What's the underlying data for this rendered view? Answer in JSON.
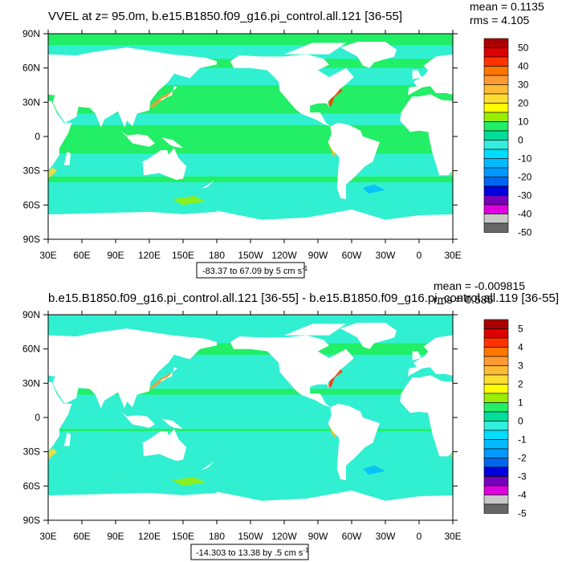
{
  "figure": {
    "background": "#ffffff",
    "ocean_color": "#22ee66",
    "ocean_alt_color": "#33eedd",
    "land_color": "#ffffff"
  },
  "chart_data": [
    {
      "type": "heatmap",
      "title": "VVEL at z=  95.0m, b.e15.B1850.f09_g16.pi_control.all.121 [36-55]",
      "stats": {
        "mean": "mean = 0.1135",
        "rms": "rms = 4.105"
      },
      "x_ticks": [
        "30E",
        "60E",
        "90E",
        "120E",
        "150E",
        "180",
        "150W",
        "120W",
        "90W",
        "60W",
        "30W",
        "0",
        "30E"
      ],
      "y_ticks": [
        "90N",
        "60N",
        "30N",
        "0",
        "30S",
        "60S",
        "90S"
      ],
      "xlim_lon_east": [
        30,
        390
      ],
      "ylim_lat": [
        -90,
        90
      ],
      "range_text": "-83.37 to 67.09 by 5 cm s",
      "range_unit_sup": "-1",
      "colorbar": {
        "labels": [
          "50",
          "40",
          "30",
          "20",
          "10",
          "0",
          "-10",
          "-20",
          "-30",
          "-40",
          "-50"
        ],
        "colors": [
          "#aa0000",
          "#dd0000",
          "#ff3300",
          "#ff7700",
          "#ff9933",
          "#ffbb33",
          "#ffdd33",
          "#ffff00",
          "#99ee00",
          "#22ee66",
          "#00dd99",
          "#33eedd",
          "#00ddff",
          "#00bbff",
          "#0099ff",
          "#0066ee",
          "#0000dd",
          "#7700bb",
          "#dd00dd",
          "#c8c8c8",
          "#666666"
        ]
      }
    },
    {
      "type": "heatmap",
      "title": "b.e15.B1850.f09_g16.pi_control.all.121 [36-55] - b.e15.B1850.f09_g16.pi_control.all.119 [36-55]",
      "stats": {
        "mean": "mean = -0.009815",
        "rms": "rms = 0.585"
      },
      "x_ticks": [
        "30E",
        "60E",
        "90E",
        "120E",
        "150E",
        "180",
        "150W",
        "120W",
        "90W",
        "60W",
        "30W",
        "0",
        "30E"
      ],
      "y_ticks": [
        "90N",
        "60N",
        "30N",
        "0",
        "30S",
        "60S",
        "90S"
      ],
      "xlim_lon_east": [
        30,
        390
      ],
      "ylim_lat": [
        -90,
        90
      ],
      "range_text": "-14.303 to 13.38 by .5 cm s",
      "range_unit_sup": "-1",
      "colorbar": {
        "labels": [
          "5",
          "4",
          "3",
          "2",
          "1",
          "0",
          "-1",
          "-2",
          "-3",
          "-4",
          "-5"
        ],
        "colors": [
          "#aa0000",
          "#dd0000",
          "#ff3300",
          "#ff7700",
          "#ff9933",
          "#ffbb33",
          "#ffdd33",
          "#ffff00",
          "#99ee00",
          "#22ee66",
          "#00dd99",
          "#33eedd",
          "#00ddff",
          "#00bbff",
          "#0099ff",
          "#0066ee",
          "#0000dd",
          "#7700bb",
          "#dd00dd",
          "#c8c8c8",
          "#666666"
        ]
      }
    }
  ]
}
